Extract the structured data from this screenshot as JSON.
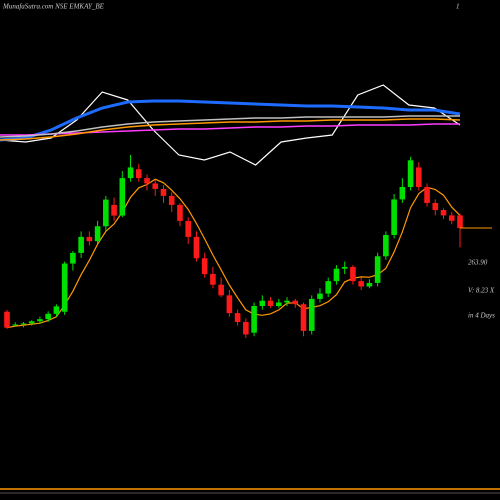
{
  "chart_data": {
    "type": "candlestick",
    "title": "MunafaSutra.com NSE EMKAY_BE",
    "corner_label": "1",
    "last_price_label": "263.90",
    "volume_label": "V: 8.23 X",
    "days_label": "in 4 Days",
    "up_color": "#00e000",
    "down_color": "#ff1a1a",
    "ma_color": "#ff9900",
    "open": [
      216.8,
      209.6,
      209.6,
      210.2,
      211.4,
      212.6,
      215.6,
      216.8,
      243.9,
      249.9,
      258.9,
      256.5,
      264.9,
      276.9,
      270.9,
      292,
      297,
      292,
      289,
      285.9,
      282,
      276.9,
      267.9,
      258.9,
      246.9,
      238,
      232,
      226,
      216,
      211,
      205,
      220,
      223,
      220,
      222,
      223,
      221,
      206,
      224,
      227,
      234,
      241,
      242,
      234,
      231,
      233,
      248,
      260,
      280,
      287,
      298,
      287,
      278,
      274,
      271,
      271
    ],
    "high": [
      217.8,
      210.8,
      211,
      212,
      214,
      217,
      221,
      245,
      251,
      262,
      262,
      268,
      282,
      281,
      296,
      305,
      300,
      294,
      291,
      288,
      284,
      278,
      270,
      262,
      250,
      242,
      236,
      229,
      218,
      213,
      222,
      226,
      225,
      224,
      225,
      224,
      222,
      226,
      230,
      236,
      243,
      245,
      243,
      236,
      235,
      250,
      262,
      283,
      292,
      304,
      301,
      289,
      280,
      275,
      273,
      272
    ],
    "low": [
      207.2,
      208.4,
      208,
      209,
      210,
      211,
      214,
      215,
      240,
      247,
      254,
      255,
      262,
      268,
      270,
      290,
      290,
      285,
      282,
      278,
      273,
      265,
      255,
      245,
      236,
      230,
      225,
      214,
      209,
      202,
      203,
      218,
      219,
      219,
      220,
      219,
      203,
      204,
      222,
      225,
      232,
      238,
      232,
      229,
      230,
      231,
      246,
      258,
      278,
      285,
      285,
      276,
      271,
      269,
      266,
      253
    ],
    "close": [
      207.8,
      209.6,
      210.2,
      211.4,
      212.6,
      215.6,
      219.8,
      243.9,
      249.9,
      258.9,
      256.5,
      264.9,
      279.9,
      270.9,
      292,
      298,
      292,
      289,
      285.9,
      282,
      276.9,
      267.9,
      258.9,
      246.9,
      238,
      232,
      226,
      216,
      211,
      204,
      220,
      223,
      220,
      222,
      223,
      221,
      206,
      224,
      227,
      234,
      241,
      242,
      234,
      231,
      233,
      248,
      260,
      280,
      287,
      302,
      287,
      278,
      274,
      271,
      268,
      263.9
    ],
    "indicator_series": [
      {
        "color": "#ffffff",
        "values": [
          30,
          28,
          32,
          50,
          78,
          70,
          40,
          15,
          10,
          18,
          5,
          28,
          32,
          35,
          75,
          85,
          65,
          62,
          45
        ]
      },
      {
        "color": "#1e6bff",
        "values": [
          30,
          32,
          40,
          52,
          62,
          68,
          69,
          69,
          68,
          67,
          66,
          65,
          64,
          64,
          63,
          62,
          60,
          60,
          56
        ]
      },
      {
        "color": "#ff3cff",
        "values": [
          35,
          35,
          36,
          37,
          38,
          39,
          40,
          41,
          41,
          42,
          43,
          43,
          44,
          44,
          45,
          45,
          45,
          46,
          46
        ]
      },
      {
        "color": "#ff9900",
        "values": [
          30,
          31,
          33,
          36,
          40,
          43,
          45,
          46,
          47,
          48,
          48,
          49,
          49,
          50,
          50,
          50,
          51,
          51,
          50
        ]
      },
      {
        "color": "#c0c0c0",
        "values": [
          33,
          34,
          36,
          39,
          43,
          46,
          48,
          49,
          50,
          51,
          52,
          52,
          53,
          53,
          53,
          53,
          54,
          54,
          54
        ]
      }
    ]
  }
}
